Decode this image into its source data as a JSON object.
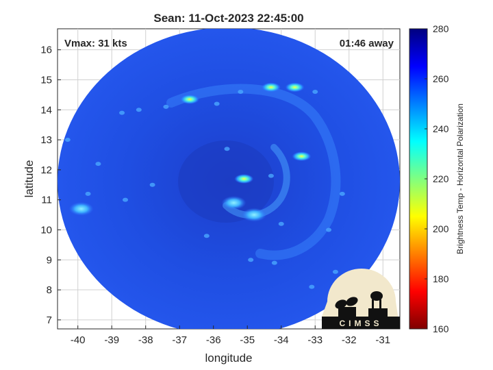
{
  "chart_data": {
    "type": "heatmap",
    "title": "Sean: 11-Oct-2023 22:45:00",
    "xlabel": "longitude",
    "ylabel": "latitude",
    "xlim": [
      -40.6,
      -30.5
    ],
    "ylim": [
      6.7,
      16.7
    ],
    "x_ticks": [
      "-40",
      "-39",
      "-38",
      "-37",
      "-36",
      "-35",
      "-34",
      "-33",
      "-32",
      "-31"
    ],
    "y_ticks": [
      "7",
      "8",
      "9",
      "10",
      "11",
      "12",
      "13",
      "14",
      "15",
      "16"
    ],
    "grid": true,
    "annotations": {
      "vmax": "Vmax: 31 kts",
      "away": "01:46 away"
    },
    "colorbar": {
      "label": "Brightness Temp - Horizontal Polarization",
      "range": [
        160,
        280
      ],
      "ticks": [
        "160",
        "180",
        "200",
        "220",
        "240",
        "260",
        "280"
      ],
      "colormap": [
        "#7f0000",
        "#ff0000",
        "#ffff00",
        "#00ffff",
        "#0000ff",
        "#00007f"
      ]
    },
    "swath": {
      "center_lon": -35.5,
      "center_lat": 11.0,
      "background_color": "#1e4fe6"
    },
    "features": [
      {
        "name": "center-hotspot",
        "lon": -35.1,
        "lat": 11.7,
        "temp": 228
      },
      {
        "name": "hotspot-north-1",
        "lon": -36.7,
        "lat": 14.35,
        "temp": 225
      },
      {
        "name": "hotspot-north-2",
        "lon": -33.6,
        "lat": 14.75,
        "temp": 210
      },
      {
        "name": "hotspot-north-3",
        "lon": -34.3,
        "lat": 14.75,
        "temp": 232
      },
      {
        "name": "hotspot-east",
        "lon": -33.4,
        "lat": 12.45,
        "temp": 215
      },
      {
        "name": "hotspot-west",
        "lon": -39.9,
        "lat": 10.7,
        "temp": 238
      },
      {
        "name": "band-south",
        "lon": -34.8,
        "lat": 10.5,
        "temp": 240
      },
      {
        "name": "band-inner",
        "lon": -35.4,
        "lat": 10.9,
        "temp": 242
      }
    ],
    "logo": {
      "text": "CIMSS"
    }
  }
}
